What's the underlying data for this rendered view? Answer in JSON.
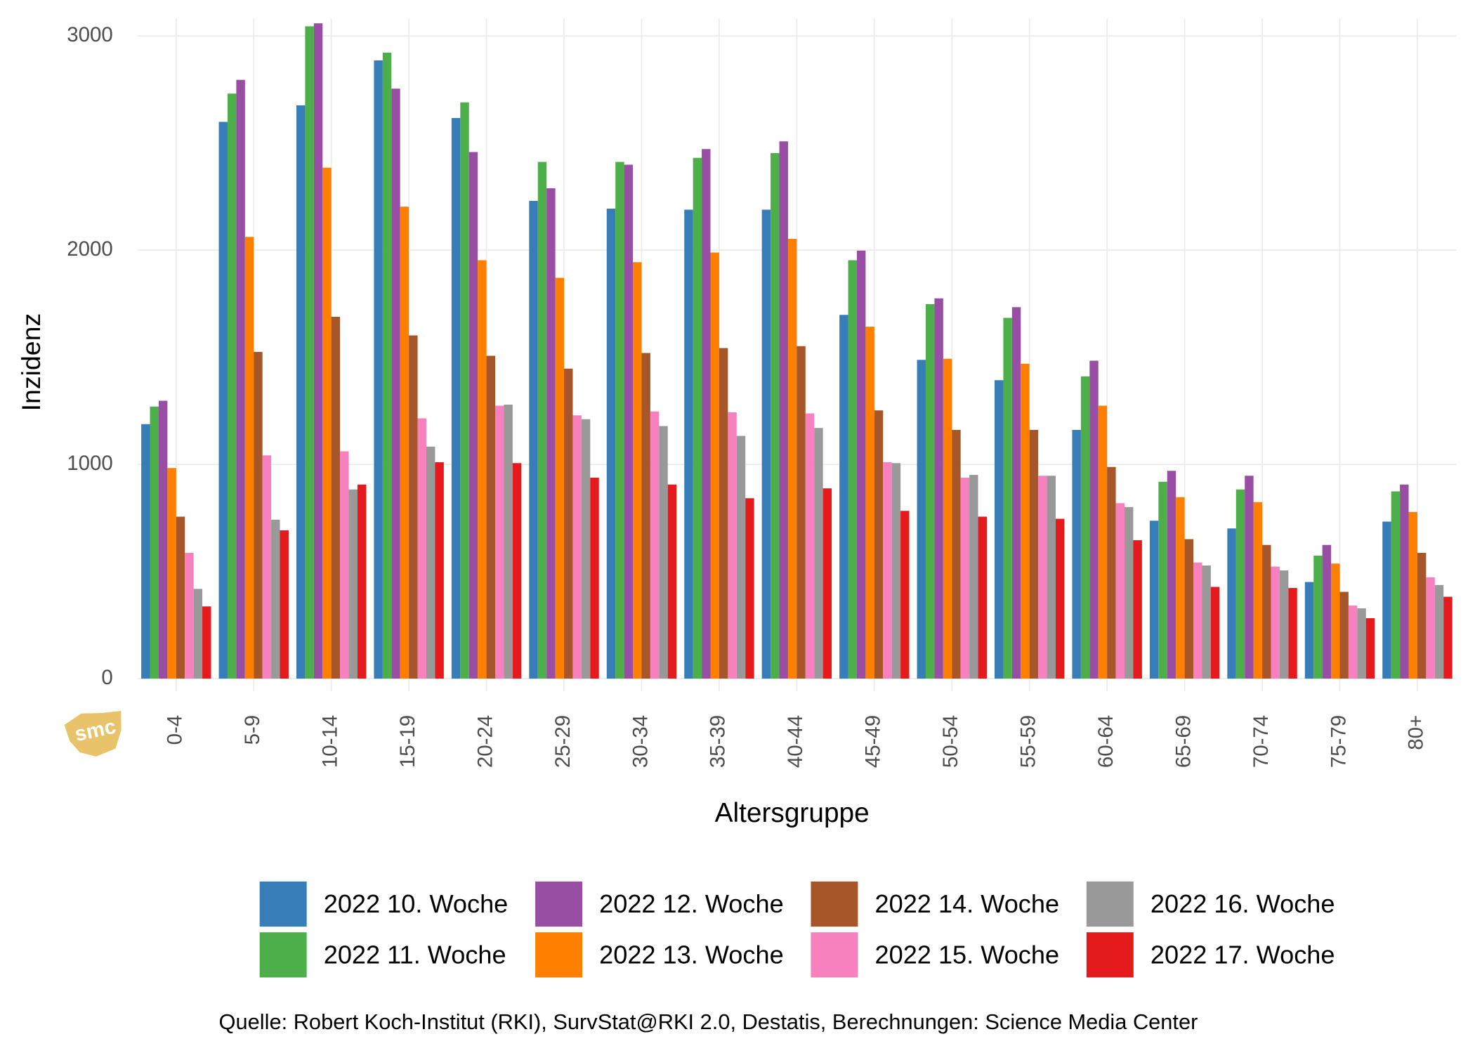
{
  "chart_data": {
    "type": "bar",
    "x_label": "Altersgruppe",
    "y_label": "Inzidenz",
    "caption": "Quelle: Robert Koch-Institut (RKI), SurvStat@RKI 2.0, Destatis, Berechnungen: Science Media Center",
    "logo_text": "smc",
    "categories": [
      "0-4",
      "5-9",
      "10-14",
      "15-19",
      "20-24",
      "25-29",
      "30-34",
      "35-39",
      "40-44",
      "45-49",
      "50-54",
      "55-59",
      "60-64",
      "65-69",
      "70-74",
      "75-79",
      "80+"
    ],
    "series": [
      {
        "name": "2022 10. Woche",
        "color": "#377eb8",
        "values": [
          1188,
          2599,
          2676,
          2886,
          2617,
          2230,
          2194,
          2189,
          2189,
          1698,
          1488,
          1393,
          1161,
          737,
          701,
          451,
          733
        ]
      },
      {
        "name": "2022 11. Woche",
        "color": "#4daf4a",
        "values": [
          1270,
          2731,
          3045,
          2922,
          2690,
          2412,
          2412,
          2431,
          2453,
          1953,
          1748,
          1684,
          1411,
          919,
          883,
          574,
          874
        ]
      },
      {
        "name": "2022 12. Woche",
        "color": "#984ea3",
        "values": [
          1297,
          2795,
          3059,
          2754,
          2458,
          2289,
          2399,
          2472,
          2508,
          1998,
          1775,
          1734,
          1484,
          970,
          947,
          624,
          906
        ]
      },
      {
        "name": "2022 13. Woche",
        "color": "#ff7f00",
        "values": [
          983,
          2062,
          2385,
          2203,
          1953,
          1871,
          1944,
          1989,
          2053,
          1643,
          1493,
          1470,
          1274,
          847,
          824,
          537,
          778
        ]
      },
      {
        "name": "2022 14. Woche",
        "color": "#a65628",
        "values": [
          756,
          1525,
          1689,
          1602,
          1507,
          1447,
          1520,
          1543,
          1552,
          1252,
          1161,
          1161,
          988,
          651,
          624,
          405,
          587
        ]
      },
      {
        "name": "2022 15. Woche",
        "color": "#f781bf",
        "values": [
          587,
          1042,
          1061,
          1215,
          1274,
          1229,
          1247,
          1243,
          1238,
          1010,
          938,
          947,
          819,
          542,
          523,
          341,
          473
        ]
      },
      {
        "name": "2022 16. Woche",
        "color": "#999999",
        "values": [
          419,
          742,
          883,
          1083,
          1279,
          1211,
          1179,
          1133,
          1170,
          1006,
          951,
          947,
          801,
          528,
          505,
          328,
          437
        ]
      },
      {
        "name": "2022 17. Woche",
        "color": "#e41a1c",
        "values": [
          337,
          692,
          906,
          1010,
          1006,
          938,
          906,
          842,
          888,
          783,
          756,
          746,
          646,
          428,
          423,
          282,
          382
        ]
      }
    ],
    "ylim": [
      -60,
      3080
    ],
    "yticks": [
      0,
      1000,
      2000,
      3000
    ],
    "grid": true,
    "legend_position": "bottom"
  }
}
